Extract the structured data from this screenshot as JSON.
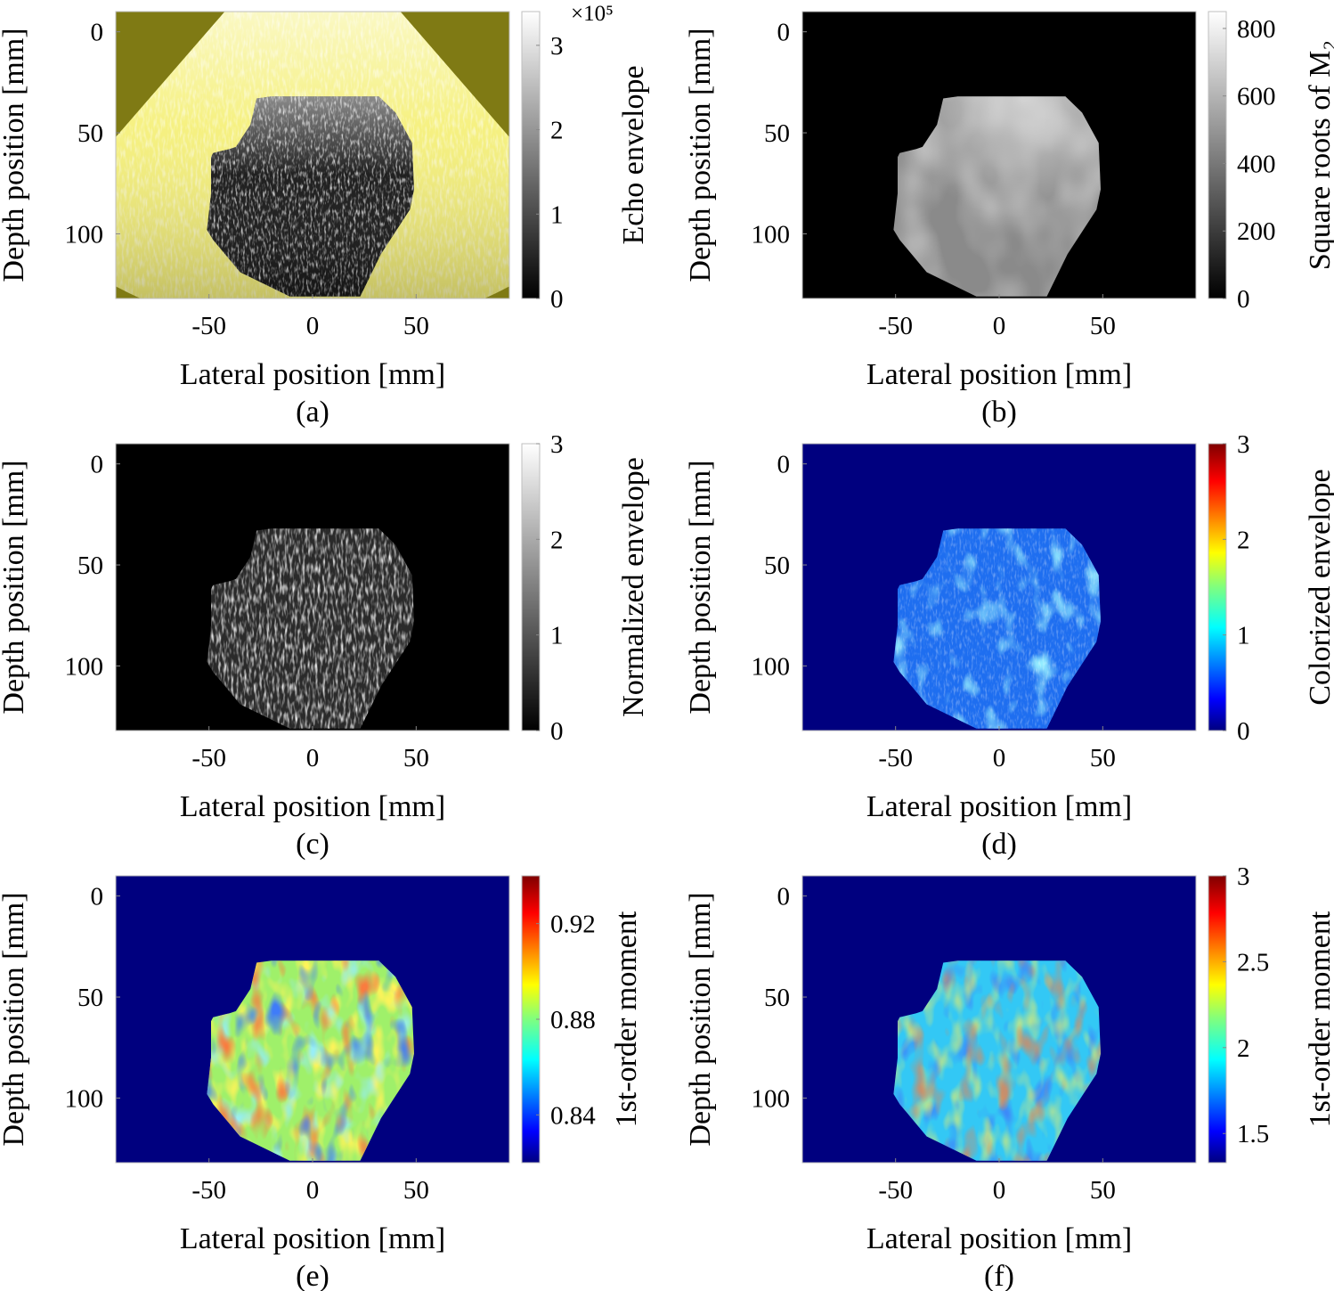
{
  "figure": {
    "colors": {
      "sector_fill": "#f5f07a",
      "background_yellow": "#7f7a14",
      "background_black": "#000000",
      "background_jet": "#00007f"
    },
    "chart_data": [
      {
        "id": "a",
        "type": "heatmap",
        "panel_label": "(a)",
        "image": "echo-envelope-bmode",
        "xlabel": "Lateral position [mm]",
        "ylabel": "Depth position [mm]",
        "xlim": [
          -95,
          95
        ],
        "ylim": [
          132,
          -10
        ],
        "xticks": [
          -50,
          0,
          50
        ],
        "xtick_labels": [
          "-50",
          "0",
          "50"
        ],
        "yticks": [
          0,
          50,
          100
        ],
        "ytick_labels": [
          "0",
          "50",
          "100"
        ],
        "colorbar": {
          "label": "Echo envelope",
          "colormap": "gray",
          "range": [
            0,
            3.4
          ],
          "ticks": [
            0,
            1,
            2,
            3
          ],
          "tick_labels": [
            "0",
            "1",
            "2",
            "3"
          ],
          "exponent_label": "×10⁵"
        }
      },
      {
        "id": "b",
        "type": "heatmap",
        "panel_label": "(b)",
        "image": "m2-square-root-map",
        "xlabel": "Lateral position [mm]",
        "ylabel": "Depth position [mm]",
        "xlim": [
          -95,
          95
        ],
        "ylim": [
          132,
          -10
        ],
        "xticks": [
          -50,
          0,
          50
        ],
        "xtick_labels": [
          "-50",
          "0",
          "50"
        ],
        "yticks": [
          0,
          50,
          100
        ],
        "ytick_labels": [
          "0",
          "50",
          "100"
        ],
        "colorbar": {
          "label": "Square roots of M₂",
          "colormap": "gray",
          "range": [
            0,
            850
          ],
          "ticks": [
            0,
            200,
            400,
            600,
            800
          ],
          "tick_labels": [
            "0",
            "200",
            "400",
            "600",
            "800"
          ]
        }
      },
      {
        "id": "c",
        "type": "heatmap",
        "panel_label": "(c)",
        "image": "normalized-envelope-map",
        "xlabel": "Lateral position [mm]",
        "ylabel": "Depth position [mm]",
        "xlim": [
          -95,
          95
        ],
        "ylim": [
          132,
          -10
        ],
        "xticks": [
          -50,
          0,
          50
        ],
        "xtick_labels": [
          "-50",
          "0",
          "50"
        ],
        "yticks": [
          0,
          50,
          100
        ],
        "ytick_labels": [
          "0",
          "50",
          "100"
        ],
        "colorbar": {
          "label": "Normalized envelope",
          "colormap": "gray",
          "range": [
            0,
            3
          ],
          "ticks": [
            0,
            1,
            2,
            3
          ],
          "tick_labels": [
            "0",
            "1",
            "2",
            "3"
          ]
        }
      },
      {
        "id": "d",
        "type": "heatmap",
        "panel_label": "(d)",
        "image": "colorized-envelope-map",
        "xlabel": "Lateral position [mm]",
        "ylabel": "Depth position [mm]",
        "xlim": [
          -95,
          95
        ],
        "ylim": [
          132,
          -10
        ],
        "xticks": [
          -50,
          0,
          50
        ],
        "xtick_labels": [
          "-50",
          "0",
          "50"
        ],
        "yticks": [
          0,
          50,
          100
        ],
        "ytick_labels": [
          "0",
          "50",
          "100"
        ],
        "colorbar": {
          "label": "Colorized envelope",
          "colormap": "jet",
          "range": [
            0,
            3
          ],
          "ticks": [
            0,
            1,
            2,
            3
          ],
          "tick_labels": [
            "0",
            "1",
            "2",
            "3"
          ]
        }
      },
      {
        "id": "e",
        "type": "heatmap",
        "panel_label": "(e)",
        "image": "first-order-moment-map-normalized",
        "xlabel": "Lateral position [mm]",
        "ylabel": "Depth position [mm]",
        "xlim": [
          -95,
          95
        ],
        "ylim": [
          132,
          -10
        ],
        "xticks": [
          -50,
          0,
          50
        ],
        "xtick_labels": [
          "-50",
          "0",
          "50"
        ],
        "yticks": [
          0,
          50,
          100
        ],
        "ytick_labels": [
          "0",
          "50",
          "100"
        ],
        "colorbar": {
          "label": "1st-order moment",
          "colormap": "jet",
          "range": [
            0.82,
            0.94
          ],
          "ticks": [
            0.84,
            0.88,
            0.92
          ],
          "tick_labels": [
            "0.84",
            "0.88",
            "0.92"
          ]
        }
      },
      {
        "id": "f",
        "type": "heatmap",
        "panel_label": "(f)",
        "image": "first-order-moment-map-colorized",
        "xlabel": "Lateral position [mm]",
        "ylabel": "Depth position [mm]",
        "xlim": [
          -95,
          95
        ],
        "ylim": [
          132,
          -10
        ],
        "xticks": [
          -50,
          0,
          50
        ],
        "xtick_labels": [
          "-50",
          "0",
          "50"
        ],
        "yticks": [
          0,
          50,
          100
        ],
        "ytick_labels": [
          "0",
          "50",
          "100"
        ],
        "colorbar": {
          "label": "1st-order moment",
          "colormap": "jet",
          "range": [
            1.33,
            3
          ],
          "ticks": [
            1.5,
            2,
            2.5,
            3
          ],
          "tick_labels": [
            "1.5",
            "2",
            "2.5",
            "3"
          ]
        }
      }
    ]
  }
}
